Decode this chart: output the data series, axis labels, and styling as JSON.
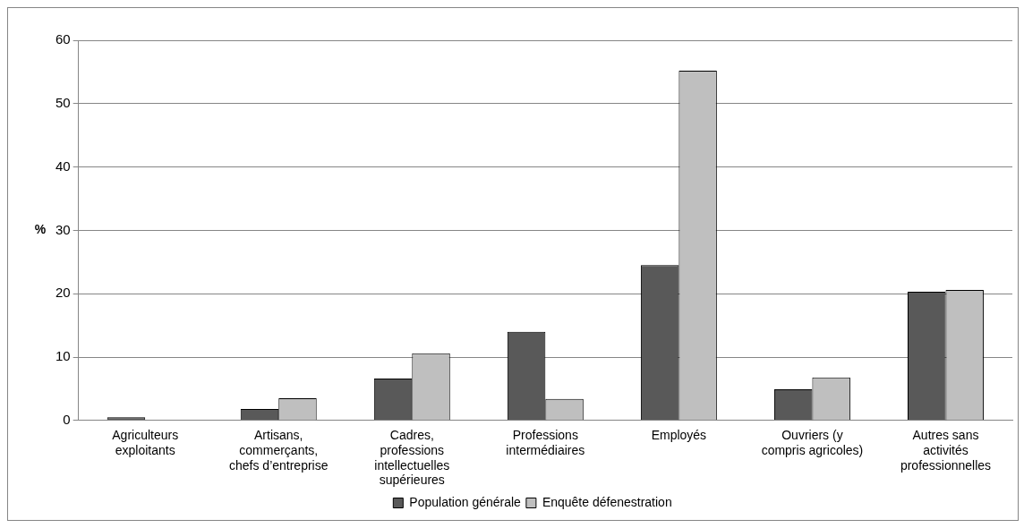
{
  "chart_data": {
    "type": "bar",
    "ylabel": "%",
    "categories": [
      "Agriculteurs exploitants",
      "Artisans, commerçants, chefs d’entreprise",
      "Cadres, professions intellectuelles supérieures",
      "Professions intermédiaires",
      "Employés",
      "Ouvriers (y compris agricoles)",
      "Autres sans activités professionnelles"
    ],
    "series": [
      {
        "name": "Population générale",
        "color": "#595959",
        "values": [
          0.5,
          1.8,
          6.6,
          14.0,
          24.5,
          4.9,
          20.3
        ]
      },
      {
        "name": "Enquête défenestration",
        "color": "#bfbfbf",
        "values": [
          0,
          3.5,
          10.6,
          3.4,
          55.2,
          6.8,
          20.6
        ]
      }
    ],
    "ylim": [
      0,
      60
    ],
    "yticks": [
      0,
      10,
      20,
      30,
      40,
      50,
      60
    ],
    "grid": "y",
    "legend": "bottom"
  }
}
